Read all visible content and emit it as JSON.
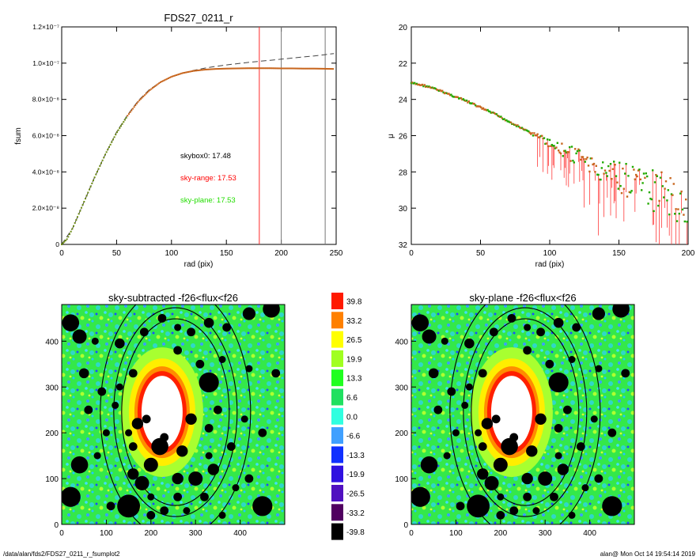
{
  "chart_data": [
    {
      "type": "line",
      "title": "FDS27_0211_r",
      "xlabel": "rad (pix)",
      "ylabel": "fsum",
      "xlim": [
        0,
        250
      ],
      "ylim": [
        0,
        1.2e-07
      ],
      "x_ticks": [
        "0",
        "50",
        "100",
        "150",
        "200",
        "250"
      ],
      "y_ticks": [
        "0",
        "2.0×10⁻⁸",
        "4.0×10⁻⁸",
        "6.0×10⁻⁸",
        "8.0×10⁻⁸",
        "1.0×10⁻⁷",
        "1.2×10⁻⁷"
      ],
      "series": [
        {
          "style": "points",
          "color": "#c8661e",
          "x": [
            0,
            5,
            10,
            15,
            20,
            25,
            30,
            40,
            50,
            60,
            70,
            80,
            90,
            100,
            110,
            120,
            130,
            140,
            150,
            160,
            170,
            180,
            190,
            200,
            210,
            220,
            230,
            240,
            248
          ],
          "y": [
            0,
            3e-09,
            9e-09,
            1.6e-08,
            2.3e-08,
            3e-08,
            3.7e-08,
            5e-08,
            6.15e-08,
            7.1e-08,
            7.9e-08,
            8.5e-08,
            8.95e-08,
            9.25e-08,
            9.45e-08,
            9.57e-08,
            9.64e-08,
            9.68e-08,
            9.7e-08,
            9.71e-08,
            9.72e-08,
            9.72e-08,
            9.72e-08,
            9.71e-08,
            9.71e-08,
            9.7e-08,
            9.7e-08,
            9.69e-08,
            9.68e-08
          ]
        },
        {
          "style": "dashed",
          "color": "#333333",
          "x": [
            0,
            10,
            20,
            30,
            40,
            50,
            60,
            70,
            80,
            90,
            100,
            110,
            120,
            130,
            140,
            150,
            160,
            170,
            180,
            190,
            200,
            210,
            220,
            230,
            240,
            248
          ],
          "y": [
            0,
            9e-09,
            2.3e-08,
            3.7e-08,
            5e-08,
            6.2e-08,
            7.15e-08,
            7.95e-08,
            8.55e-08,
            8.95e-08,
            9.25e-08,
            9.45e-08,
            9.6e-08,
            9.72e-08,
            9.82e-08,
            9.9e-08,
            9.97e-08,
            1.004e-07,
            1.01e-07,
            1.016e-07,
            1.022e-07,
            1.028e-07,
            1.034e-07,
            1.04e-07,
            1.047e-07,
            1.053e-07
          ]
        }
      ],
      "vlines": [
        {
          "x": 180,
          "color": "#ff2a2a"
        },
        {
          "x": 200,
          "color": "#777777"
        },
        {
          "x": 240,
          "color": "#777777"
        }
      ],
      "annotations": [
        {
          "text": "skybox0: 17.48",
          "color": "#000000"
        },
        {
          "text": "sky-range: 17.53",
          "color": "#ff0000"
        },
        {
          "text": "sky-plane: 17.53",
          "color": "#22dd00"
        }
      ]
    },
    {
      "type": "scatter",
      "xlabel": "rad (pix)",
      "ylabel": "μ",
      "xlim": [
        0,
        200
      ],
      "ylim": [
        32,
        20
      ],
      "x_ticks": [
        "0",
        "50",
        "100",
        "150",
        "200"
      ],
      "y_ticks": [
        "20",
        "22",
        "24",
        "26",
        "28",
        "30",
        "32"
      ],
      "profile": {
        "x": [
          0,
          10,
          20,
          30,
          40,
          50,
          60,
          70,
          80,
          90,
          100,
          110,
          120,
          130,
          140,
          150,
          160,
          170,
          180,
          190,
          200
        ],
        "y": [
          23.1,
          23.25,
          23.5,
          23.8,
          24.1,
          24.45,
          24.8,
          25.2,
          25.6,
          26.0,
          26.4,
          26.8,
          27.2,
          27.6,
          28.0,
          28.3,
          28.6,
          28.9,
          29.2,
          29.5,
          29.8
        ]
      },
      "point_colors": {
        "marker": "#c8661e",
        "marker_alt": "#22aa00",
        "error": "#ff3b3b"
      }
    },
    {
      "type": "heatmap",
      "title": "sky-subtracted -f26<flux<f26",
      "xlim": [
        0,
        500
      ],
      "ylim": [
        0,
        480
      ],
      "x_ticks": [
        "0",
        "100",
        "200",
        "300",
        "400"
      ],
      "y_ticks": [
        "0",
        "100",
        "200",
        "300",
        "400"
      ]
    },
    {
      "type": "heatmap",
      "title": "sky-plane -f26<flux<f26",
      "xlim": [
        0,
        500
      ],
      "ylim": [
        0,
        480
      ],
      "x_ticks": [
        "0",
        "100",
        "200",
        "300",
        "400"
      ],
      "y_ticks": [
        "0",
        "100",
        "200",
        "300",
        "400"
      ]
    }
  ],
  "colorbar": {
    "levels": [
      "39.8",
      "33.2",
      "26.5",
      "19.9",
      "13.3",
      "6.6",
      "0.0",
      "-6.6",
      "-13.3",
      "-19.9",
      "-26.5",
      "-33.2",
      "-39.8"
    ],
    "colors": [
      "#ff1a00",
      "#ff8000",
      "#ffff00",
      "#a0ff20",
      "#20ff20",
      "#20e060",
      "#30ffe0",
      "#40a0ff",
      "#1030ff",
      "#3010e0",
      "#5010c0",
      "#500060",
      "#000000"
    ]
  },
  "footer": {
    "left": "/data/alan/fds2/FDS27_0211_r_fsumplot2",
    "right": "alan@  Mon Oct 14 19:54:14 2019"
  }
}
